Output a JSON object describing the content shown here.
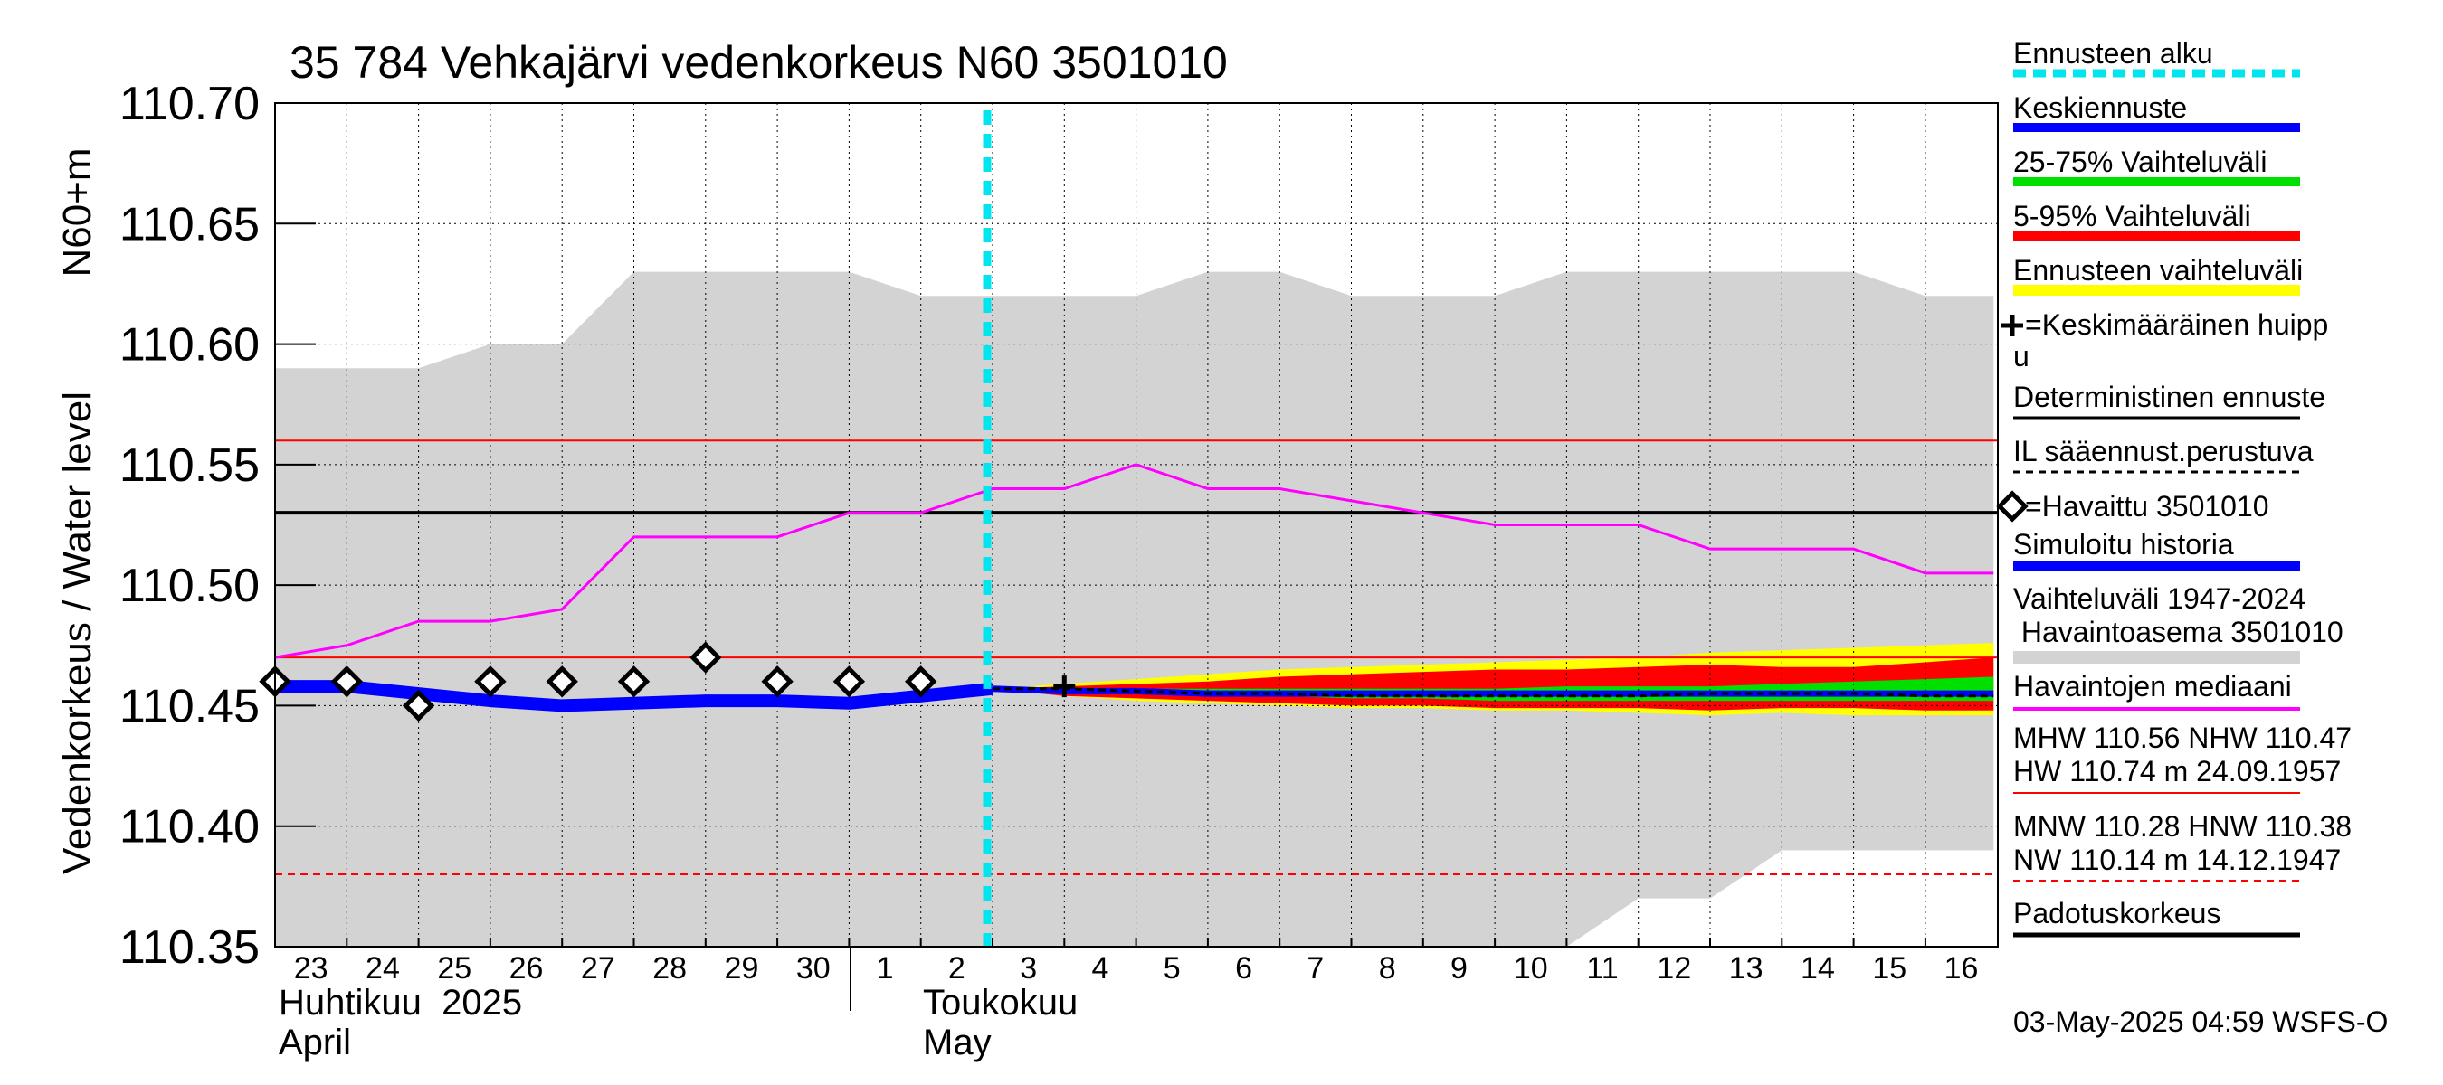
{
  "chart_data": {
    "type": "line",
    "title": "35 784 Vehkajärvi vedenkorkeus N60 3501010",
    "ylabel": "Vedenkorkeus / Water level",
    "ylabel_unit": "N60+m",
    "ylim": [
      110.35,
      110.7
    ],
    "y_ticks": [
      "110.70",
      "110.65",
      "110.60",
      "110.55",
      "110.50",
      "110.45",
      "110.40",
      "110.35"
    ],
    "x_day_labels": [
      "23",
      "24",
      "25",
      "26",
      "27",
      "28",
      "29",
      "30",
      "1",
      "2",
      "3",
      "4",
      "5",
      "6",
      "7",
      "8",
      "9",
      "10",
      "11",
      "12",
      "13",
      "14",
      "15",
      "16"
    ],
    "month_labels": [
      {
        "fi": "Huhtikuu  2025",
        "en": "April",
        "start_index": 0
      },
      {
        "fi": "Toukokuu",
        "en": "May",
        "start_index": 8
      }
    ],
    "forecast_start_index": 10,
    "reference_lines": {
      "MHW": 110.56,
      "NHW": 110.47,
      "HW": 110.74,
      "MNW": 110.28,
      "HNW": 110.38,
      "NW": 110.14,
      "Padotuskorkeus": 110.53
    },
    "variation_1947_2024": {
      "x": [
        0,
        2,
        3,
        4,
        5,
        6,
        7,
        8,
        9,
        10,
        11,
        12,
        13,
        14,
        15,
        16,
        17,
        18,
        19,
        20,
        21,
        22,
        23,
        23.95
      ],
      "upper": [
        110.59,
        110.59,
        110.6,
        110.6,
        110.63,
        110.63,
        110.63,
        110.63,
        110.62,
        110.62,
        110.62,
        110.62,
        110.63,
        110.63,
        110.62,
        110.62,
        110.62,
        110.63,
        110.63,
        110.63,
        110.63,
        110.63,
        110.62,
        110.62
      ],
      "lower": [
        110.35,
        110.35,
        110.35,
        110.35,
        110.35,
        110.35,
        110.35,
        110.35,
        110.35,
        110.35,
        110.35,
        110.35,
        110.35,
        110.35,
        110.35,
        110.35,
        110.35,
        110.35,
        110.37,
        110.37,
        110.39,
        110.39,
        110.39,
        110.39
      ]
    },
    "observed_median": {
      "x": [
        0,
        1,
        2,
        3,
        4,
        5,
        6,
        7,
        8,
        9,
        10,
        11,
        12,
        13,
        14,
        15,
        16,
        17,
        18,
        19,
        20,
        21,
        22,
        23,
        23.95
      ],
      "values": [
        110.47,
        110.475,
        110.485,
        110.485,
        110.49,
        110.52,
        110.52,
        110.52,
        110.53,
        110.53,
        110.54,
        110.54,
        110.55,
        110.54,
        110.54,
        110.535,
        110.53,
        110.525,
        110.525,
        110.525,
        110.515,
        110.515,
        110.515,
        110.505,
        110.505
      ]
    },
    "observed_3501010": {
      "x": [
        0,
        1,
        2,
        3,
        4,
        5,
        6,
        7,
        8,
        9
      ],
      "values": [
        110.46,
        110.46,
        110.45,
        110.46,
        110.46,
        110.46,
        110.47,
        110.46,
        110.46,
        110.46
      ]
    },
    "simulated_history": {
      "x": [
        0,
        1,
        2,
        3,
        4,
        5,
        6,
        7,
        8,
        9,
        10
      ],
      "values": [
        110.458,
        110.458,
        110.455,
        110.452,
        110.45,
        110.451,
        110.452,
        110.452,
        110.451,
        110.454,
        110.457
      ]
    },
    "forecast_x": [
      10,
      11,
      12,
      13,
      14,
      15,
      16,
      17,
      18,
      19,
      20,
      21,
      22,
      23,
      23.95
    ],
    "forecast_range": {
      "upper": [
        110.457,
        110.459,
        110.461,
        110.463,
        110.465,
        110.466,
        110.467,
        110.468,
        110.469,
        110.47,
        110.472,
        110.473,
        110.474,
        110.475,
        110.476
      ],
      "lower": [
        110.457,
        110.454,
        110.452,
        110.451,
        110.45,
        110.449,
        110.449,
        110.448,
        110.448,
        110.447,
        110.446,
        110.447,
        110.446,
        110.446,
        110.446
      ]
    },
    "p5_95": {
      "upper": [
        110.457,
        110.458,
        110.459,
        110.46,
        110.462,
        110.463,
        110.464,
        110.465,
        110.465,
        110.466,
        110.467,
        110.466,
        110.466,
        110.468,
        110.47
      ],
      "lower": [
        110.457,
        110.454,
        110.453,
        110.452,
        110.451,
        110.45,
        110.45,
        110.449,
        110.449,
        110.449,
        110.448,
        110.449,
        110.449,
        110.448,
        110.448
      ]
    },
    "p25_75": {
      "upper": [
        110.457,
        110.457,
        110.457,
        110.457,
        110.457,
        110.457,
        110.457,
        110.457,
        110.458,
        110.458,
        110.458,
        110.459,
        110.46,
        110.461,
        110.462
      ],
      "lower": [
        110.457,
        110.455,
        110.455,
        110.454,
        110.454,
        110.453,
        110.453,
        110.452,
        110.452,
        110.452,
        110.452,
        110.452,
        110.452,
        110.452,
        110.452
      ]
    },
    "mean_forecast": [
      110.457,
      110.456,
      110.456,
      110.455,
      110.455,
      110.455,
      110.455,
      110.455,
      110.455,
      110.455,
      110.455,
      110.455,
      110.455,
      110.455,
      110.455
    ],
    "deterministic_forecast": [
      110.457,
      110.457,
      110.456,
      110.455,
      110.455,
      110.454,
      110.454,
      110.454,
      110.454,
      110.454,
      110.455,
      110.455,
      110.455,
      110.454,
      110.454
    ],
    "mean_peak": {
      "x": 11,
      "y": 110.458
    }
  },
  "legend": {
    "forecast_start": "Ennusteen alku",
    "mean_forecast": "Keskiennuste",
    "p25_75": "25-75% Vaihteluväli",
    "p5_95": "5-95% Vaihteluväli",
    "forecast_range": "Ennusteen vaihteluväli",
    "mean_peak_l1": "=Keskimääräinen huipp",
    "mean_peak_l2": "u",
    "deterministic": "Deterministinen ennuste",
    "il_forecast": "IL sääennust.perustuva",
    "observed": "=Havaittu 3501010",
    "simulated": "Simuloitu historia",
    "variation_l1": "Vaihteluväli 1947-2024",
    "variation_l2": " Havaintoasema 3501010",
    "median": "Havaintojen mediaani",
    "mhw_l1": "MHW 110.56 NHW 110.47",
    "mhw_l2": "HW 110.74 m 24.09.1957",
    "mnw_l1": "MNW 110.28 HNW 110.38",
    "mnw_l2": "NW 110.14 m 14.12.1947",
    "padotus": "Padotuskorkeus"
  },
  "timestamp": "03-May-2025 04:59 WSFS-O",
  "colors": {
    "variation_gray": "#d3d3d3",
    "forecast_yellow": "#ffff00",
    "p5_95_red": "#ff0000",
    "p25_75_green": "#00e000",
    "mean_blue": "#0000ff",
    "median_magenta": "#ff00ff",
    "forecast_start_cyan": "#00e5ee",
    "threshold_red": "#ff0000",
    "padotus_black": "#000000"
  }
}
